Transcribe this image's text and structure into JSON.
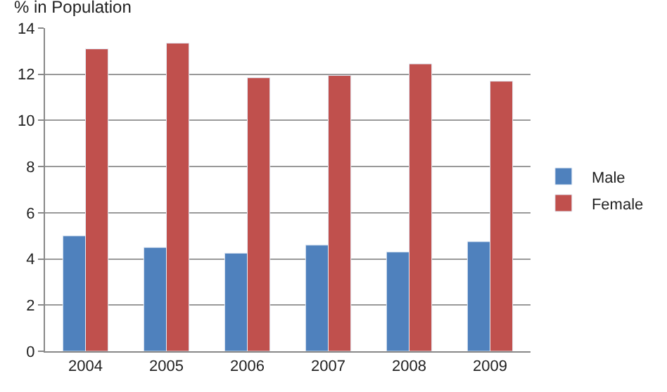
{
  "chart_data": {
    "type": "bar",
    "ylabel": "% in Population",
    "categories": [
      "2004",
      "2005",
      "2006",
      "2007",
      "2008",
      "2009"
    ],
    "series": [
      {
        "name": "Male",
        "color": "#4f81bd",
        "values": [
          5.0,
          4.5,
          4.25,
          4.6,
          4.3,
          4.75
        ]
      },
      {
        "name": "Female",
        "color": "#c0504d",
        "values": [
          13.1,
          13.35,
          11.85,
          11.95,
          12.45,
          11.7
        ]
      }
    ],
    "ylim": [
      0,
      14
    ],
    "yticks": [
      0,
      2,
      4,
      6,
      8,
      10,
      12,
      14
    ],
    "grid": "y",
    "legend": "right"
  }
}
